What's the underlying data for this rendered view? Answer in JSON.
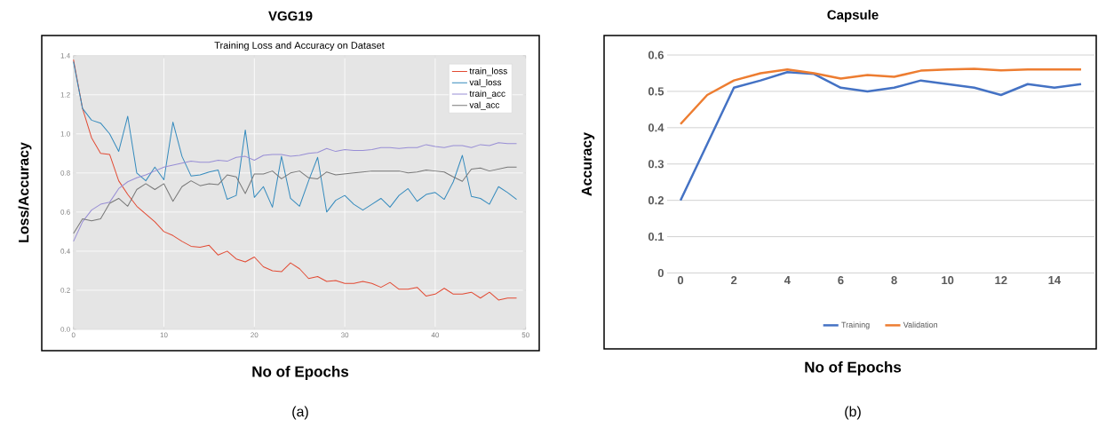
{
  "chart_data": [
    {
      "type": "line",
      "title": "VGG19",
      "subtitle": "Training Loss and Accuracy on Dataset",
      "xlabel": "No of Epochs",
      "ylabel": "Loss/Accuracy",
      "x": [
        0,
        1,
        2,
        3,
        4,
        5,
        6,
        7,
        8,
        9,
        10,
        11,
        12,
        13,
        14,
        15,
        16,
        17,
        18,
        19,
        20,
        21,
        22,
        23,
        24,
        25,
        26,
        27,
        28,
        29,
        30,
        31,
        32,
        33,
        34,
        35,
        36,
        37,
        38,
        39,
        40,
        41,
        42,
        43,
        44,
        45,
        46,
        47,
        48,
        49
      ],
      "series": [
        {
          "name": "train_loss",
          "color": "#e24a33",
          "values": [
            1.38,
            1.13,
            0.98,
            0.9,
            0.895,
            0.76,
            0.69,
            0.63,
            0.59,
            0.55,
            0.5,
            0.48,
            0.45,
            0.425,
            0.42,
            0.43,
            0.38,
            0.4,
            0.36,
            0.345,
            0.37,
            0.32,
            0.3,
            0.295,
            0.34,
            0.31,
            0.26,
            0.27,
            0.245,
            0.25,
            0.235,
            0.235,
            0.245,
            0.235,
            0.215,
            0.24,
            0.205,
            0.205,
            0.215,
            0.17,
            0.18,
            0.21,
            0.18,
            0.18,
            0.19,
            0.16,
            0.19,
            0.15,
            0.16,
            0.16
          ]
        },
        {
          "name": "val_loss",
          "color": "#348abd",
          "values": [
            1.37,
            1.13,
            1.07,
            1.055,
            1.0,
            0.91,
            1.09,
            0.8,
            0.76,
            0.83,
            0.765,
            1.06,
            0.885,
            0.785,
            0.79,
            0.805,
            0.815,
            0.665,
            0.685,
            1.02,
            0.675,
            0.73,
            0.625,
            0.885,
            0.67,
            0.63,
            0.76,
            0.88,
            0.6,
            0.66,
            0.685,
            0.64,
            0.61,
            0.64,
            0.67,
            0.625,
            0.685,
            0.72,
            0.655,
            0.69,
            0.7,
            0.665,
            0.755,
            0.89,
            0.68,
            0.67,
            0.64,
            0.73,
            0.7,
            0.665
          ]
        },
        {
          "name": "train_acc",
          "color": "#988ed5",
          "values": [
            0.45,
            0.55,
            0.61,
            0.64,
            0.65,
            0.72,
            0.755,
            0.775,
            0.79,
            0.81,
            0.83,
            0.84,
            0.85,
            0.86,
            0.855,
            0.855,
            0.865,
            0.86,
            0.88,
            0.885,
            0.865,
            0.89,
            0.895,
            0.895,
            0.885,
            0.89,
            0.9,
            0.905,
            0.925,
            0.91,
            0.92,
            0.915,
            0.915,
            0.92,
            0.93,
            0.93,
            0.925,
            0.93,
            0.93,
            0.945,
            0.935,
            0.93,
            0.94,
            0.94,
            0.93,
            0.945,
            0.94,
            0.955,
            0.95,
            0.95
          ]
        },
        {
          "name": "val_acc",
          "color": "#777777",
          "values": [
            0.49,
            0.565,
            0.555,
            0.565,
            0.645,
            0.67,
            0.63,
            0.715,
            0.745,
            0.715,
            0.745,
            0.655,
            0.73,
            0.76,
            0.735,
            0.745,
            0.74,
            0.79,
            0.78,
            0.695,
            0.795,
            0.795,
            0.81,
            0.77,
            0.8,
            0.81,
            0.775,
            0.77,
            0.805,
            0.79,
            0.795,
            0.8,
            0.805,
            0.81,
            0.81,
            0.81,
            0.81,
            0.8,
            0.805,
            0.815,
            0.81,
            0.805,
            0.78,
            0.757,
            0.82,
            0.825,
            0.81,
            0.82,
            0.83,
            0.83
          ]
        }
      ],
      "xlim": [
        0,
        50
      ],
      "xticks": [
        0,
        10,
        20,
        30,
        40,
        50
      ],
      "ylim": [
        0,
        1.4
      ],
      "yticks": [
        {
          "value": 0,
          "label": "0.0"
        },
        0.2,
        0.4,
        0.6,
        0.8,
        {
          "value": 1,
          "label": "1.0"
        },
        1.2,
        1.4
      ],
      "grid": true,
      "legend": "top right",
      "marker": "none",
      "line_style": "solid",
      "annotations": [
        "(a)"
      ]
    },
    {
      "type": "line",
      "title": "Capsule",
      "xlabel": "No of Epochs",
      "ylabel": "Accuracy",
      "x": [
        0,
        1,
        2,
        3,
        4,
        5,
        6,
        7,
        8,
        9,
        10,
        11,
        12,
        13,
        14,
        15
      ],
      "series": [
        {
          "name": "Training",
          "color": "#4472c4",
          "values": [
            0.2,
            0.355,
            0.51,
            0.53,
            0.553,
            0.548,
            0.51,
            0.5,
            0.51,
            0.53,
            0.52,
            0.51,
            0.49,
            0.52,
            0.51,
            0.52
          ]
        },
        {
          "name": "Validation",
          "color": "#ed7d31",
          "values": [
            0.41,
            0.49,
            0.53,
            0.55,
            0.56,
            0.55,
            0.535,
            0.545,
            0.54,
            0.557,
            0.56,
            0.562,
            0.558,
            0.56,
            0.56,
            0.56
          ]
        }
      ],
      "xlim": [
        -0.5,
        15.5
      ],
      "xticks": [
        0,
        2,
        4,
        6,
        8,
        10,
        12,
        14
      ],
      "ylim": [
        0,
        0.6
      ],
      "yticks": [
        0,
        0.1,
        0.2,
        0.3,
        0.4,
        0.5,
        0.6
      ],
      "grid": "y",
      "legend": "bottom",
      "marker": "none",
      "line_style": "solid",
      "annotations": [
        "(b)"
      ]
    }
  ]
}
